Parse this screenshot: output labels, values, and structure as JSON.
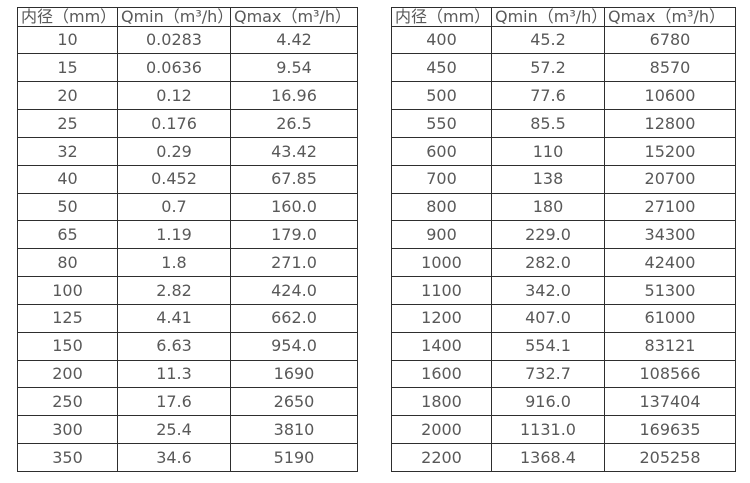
{
  "colors": {
    "background": "#ffffff",
    "border": "#2e2e2e",
    "text": "#595959"
  },
  "tables": [
    {
      "name": "flow-table-left",
      "headers": [
        "内径（mm）",
        "Qmin（m³/h）",
        "Qmax（m³/h）"
      ],
      "rows": [
        [
          "10",
          "0.0283",
          "4.42"
        ],
        [
          "15",
          "0.0636",
          "9.54"
        ],
        [
          "20",
          "0.12",
          "16.96"
        ],
        [
          "25",
          "0.176",
          "26.5"
        ],
        [
          "32",
          "0.29",
          "43.42"
        ],
        [
          "40",
          "0.452",
          "67.85"
        ],
        [
          "50",
          "0.7",
          "160.0"
        ],
        [
          "65",
          "1.19",
          "179.0"
        ],
        [
          "80",
          "1.8",
          "271.0"
        ],
        [
          "100",
          "2.82",
          "424.0"
        ],
        [
          "125",
          "4.41",
          "662.0"
        ],
        [
          "150",
          "6.63",
          "954.0"
        ],
        [
          "200",
          "11.3",
          "1690"
        ],
        [
          "250",
          "17.6",
          "2650"
        ],
        [
          "300",
          "25.4",
          "3810"
        ],
        [
          "350",
          "34.6",
          "5190"
        ]
      ]
    },
    {
      "name": "flow-table-right",
      "headers": [
        "内径（mm）",
        "Qmin（m³/h）",
        "Qmax（m³/h）"
      ],
      "rows": [
        [
          "400",
          "45.2",
          "6780"
        ],
        [
          "450",
          "57.2",
          "8570"
        ],
        [
          "500",
          "77.6",
          "10600"
        ],
        [
          "550",
          "85.5",
          "12800"
        ],
        [
          "600",
          "110",
          "15200"
        ],
        [
          "700",
          "138",
          "20700"
        ],
        [
          "800",
          "180",
          "27100"
        ],
        [
          "900",
          "229.0",
          "34300"
        ],
        [
          "1000",
          "282.0",
          "42400"
        ],
        [
          "1100",
          "342.0",
          "51300"
        ],
        [
          "1200",
          "407.0",
          "61000"
        ],
        [
          "1400",
          "554.1",
          "83121"
        ],
        [
          "1600",
          "732.7",
          "108566"
        ],
        [
          "1800",
          "916.0",
          "137404"
        ],
        [
          "2000",
          "1131.0",
          "169635"
        ],
        [
          "2200",
          "1368.4",
          "205258"
        ]
      ]
    }
  ]
}
